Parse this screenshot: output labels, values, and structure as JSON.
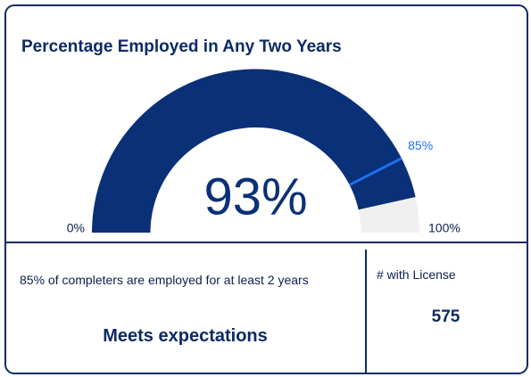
{
  "chart_data": {
    "type": "gauge",
    "title": "Percentage Employed in Any Two Years",
    "values": [
      93
    ],
    "value_labels": [
      "93%"
    ],
    "color": "#0a3078",
    "track_color": "#f0f0f0",
    "target": 85,
    "target_label": "85%",
    "target_color": "#1f6ff0",
    "ylim": [
      0,
      100
    ],
    "yticks": [
      {
        "value": 0,
        "label": "0%"
      },
      {
        "value": 100,
        "label": "100%"
      }
    ]
  },
  "summary": {
    "description": "85% of completers are employed for at least 2 years",
    "status": "Meets expectations"
  },
  "license": {
    "label": "# with License",
    "value": 575
  }
}
